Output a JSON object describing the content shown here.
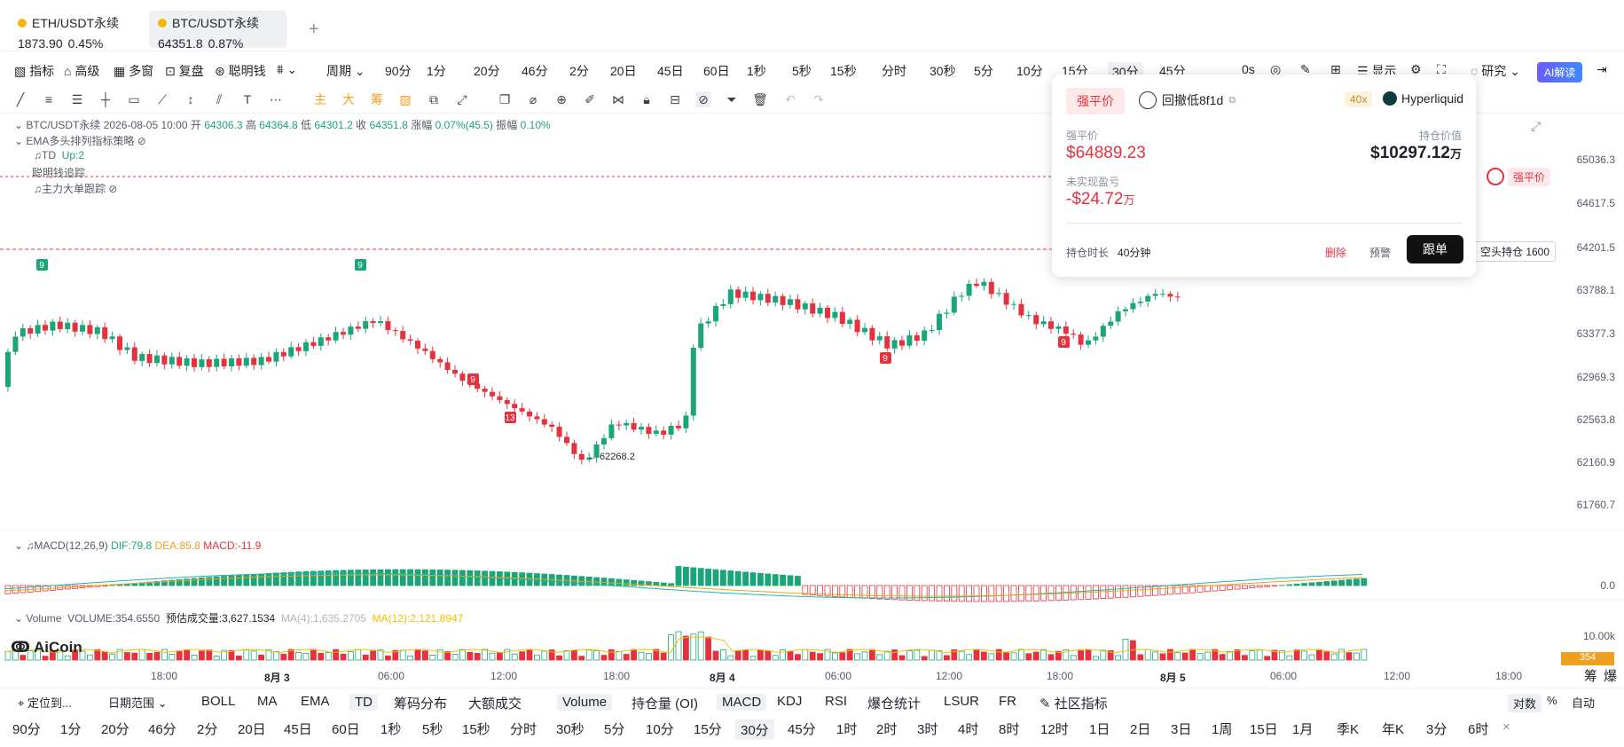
{
  "tabs": [
    {
      "symbol": "ETH/USDT永续",
      "price": "1873.90",
      "change": "0.45%",
      "active": false
    },
    {
      "symbol": "BTC/USDT永续",
      "price": "64351.8",
      "change": "0.87%",
      "active": true
    }
  ],
  "add_tab": "+",
  "toolbar": {
    "indicators": "指标",
    "advanced": "高级",
    "multi_window": "多窗",
    "replay": "复盘",
    "smart_money": "聪明钱",
    "period": "周期",
    "intervals": [
      "90分",
      "1分",
      "20分",
      "46分",
      "2分",
      "20日",
      "45日",
      "60日",
      "1秒",
      "5秒",
      "15秒",
      "分时",
      "30秒",
      "5分",
      "10分",
      "15分",
      "30分",
      "45分"
    ],
    "selected_interval": "30分",
    "zero_s": "0s",
    "display": "显示",
    "research": "研究",
    "ai_button": "AI解读"
  },
  "chart_info": {
    "symbol": "BTC/USDT永续",
    "datetime": "2026-08-05 10:00",
    "open_label": "开",
    "open": "64306.3",
    "high_label": "高",
    "high": "64364.8",
    "low_label": "低",
    "low": "64301.2",
    "close_label": "收",
    "close": "64351.8",
    "change_label": "涨幅",
    "change": "0.07%(45.5)",
    "amp_label": "振幅",
    "amp": "0.10%",
    "strategy": "EMA多头排列指标策略",
    "td_label": "TD",
    "td_value": "Up:2",
    "smart_money_track": "聪明钱追踪",
    "big_order": "主力大单跟踪"
  },
  "price_axis": [
    "65036.3",
    "64617.5",
    "64201.5",
    "63788.1",
    "63377.3",
    "62969.3",
    "62563.8",
    "62160.9",
    "61760.7"
  ],
  "chart_annotations": {
    "low_marker": "← 62268.2",
    "td_markers": [
      "9",
      "9",
      "9",
      "13",
      "9",
      "9"
    ],
    "liq_tag": "强平价",
    "short_pos": "空头持仓 1600"
  },
  "macd": {
    "label": "MACD(12,26,9)",
    "dif": "DIF:79.8",
    "dea": "DEA:85.8",
    "macd": "MACD:-11.9",
    "zero": "0.0"
  },
  "volume": {
    "label": "Volume",
    "value": "VOLUME:354.6550",
    "est": "预估成交量:3,627.1534",
    "ma4": "MA(4):1,635.2705",
    "ma12": "MA(12):2,121.8947",
    "axis": "10.00k",
    "tag": "354"
  },
  "logo": "AiCoin",
  "time_axis": [
    "18:00",
    "8月 3",
    "06:00",
    "12:00",
    "18:00",
    "8月 4",
    "06:00",
    "12:00",
    "18:00",
    "8月 5",
    "06:00",
    "12:00",
    "18:00"
  ],
  "right_corner": [
    "筹",
    "爆"
  ],
  "card": {
    "badge": "强平价",
    "user": "回撤低8f1d",
    "leverage": "40x",
    "exchange": "Hyperliquid",
    "liq_label": "强平价",
    "liq_value": "$64889.23",
    "pos_value_label": "持仓价值",
    "pos_value": "$10297.12",
    "pos_unit": "万",
    "pnl_label": "未实现盈亏",
    "pnl_value": "-$24.72",
    "pnl_unit": "万",
    "duration_label": "持仓时长",
    "duration": "40分钟",
    "delete": "删除",
    "alert": "预警",
    "follow": "跟单"
  },
  "bottom1": {
    "locate": "定位到...",
    "date_range": "日期范围",
    "items": [
      "BOLL",
      "MA",
      "EMA",
      "TD",
      "筹码分布",
      "大额成交",
      "Volume",
      "持仓量 (OI)",
      "MACD",
      "KDJ",
      "RSI",
      "爆仓统计",
      "LSUR",
      "FR",
      "社区指标"
    ],
    "selected": [
      "TD",
      "Volume",
      "MACD"
    ],
    "right": [
      "对数",
      "%",
      "自动"
    ]
  },
  "bottom2": {
    "items": [
      "90分",
      "1分",
      "20分",
      "46分",
      "2分",
      "20日",
      "45日",
      "60日",
      "1秒",
      "5秒",
      "15秒",
      "分时",
      "30秒",
      "5分",
      "10分",
      "15分",
      "30分",
      "45分",
      "1时",
      "2时",
      "3时",
      "4时",
      "8时",
      "12时",
      "1日",
      "2日",
      "3日",
      "1周",
      "15日",
      "1月",
      "季K",
      "年K",
      "3分",
      "6时"
    ],
    "selected": "30分",
    "close": "×"
  },
  "colors": {
    "up": "#1aa67a",
    "down": "#e5323e",
    "accent": "#f0b90b"
  }
}
